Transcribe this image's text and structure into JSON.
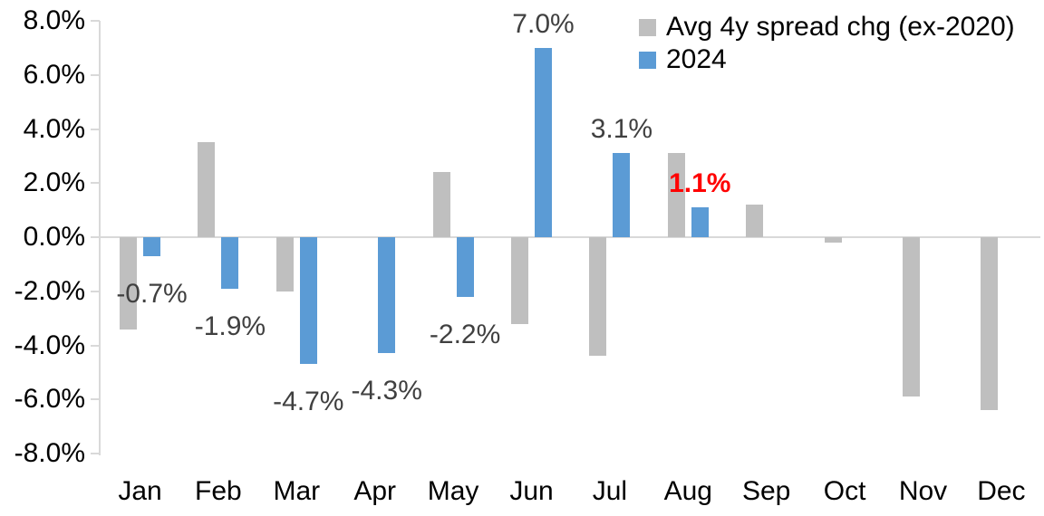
{
  "chart_data": {
    "type": "bar",
    "title": "",
    "xlabel": "",
    "ylabel": "",
    "categories": [
      "Jan",
      "Feb",
      "Mar",
      "Apr",
      "May",
      "Jun",
      "Jul",
      "Aug",
      "Sep",
      "Oct",
      "Nov",
      "Dec"
    ],
    "series": [
      {
        "name": "Avg 4y spread chg (ex-2020)",
        "color": "#BFBFBF",
        "values": [
          -3.4,
          3.5,
          -2.0,
          0.0,
          2.4,
          -3.2,
          -4.4,
          3.1,
          1.2,
          -0.2,
          -5.9,
          -6.4
        ]
      },
      {
        "name": "2024",
        "color": "#5B9BD5",
        "values": [
          -0.7,
          -1.9,
          -4.7,
          -4.3,
          -2.2,
          7.0,
          3.1,
          1.1,
          null,
          null,
          null,
          null
        ]
      }
    ],
    "data_labels": [
      {
        "category": "Jan",
        "text": "-0.7%",
        "value": -0.7,
        "position": "below",
        "color": "#404040",
        "bold": false
      },
      {
        "category": "Feb",
        "text": "-1.9%",
        "value": -1.9,
        "position": "below",
        "color": "#404040",
        "bold": false
      },
      {
        "category": "Mar",
        "text": "-4.7%",
        "value": -4.7,
        "position": "below",
        "color": "#404040",
        "bold": false
      },
      {
        "category": "Apr",
        "text": "-4.3%",
        "value": -4.3,
        "position": "below",
        "color": "#404040",
        "bold": false
      },
      {
        "category": "May",
        "text": "-2.2%",
        "value": -2.2,
        "position": "below",
        "color": "#404040",
        "bold": false
      },
      {
        "category": "Jun",
        "text": "7.0%",
        "value": 7.0,
        "position": "above",
        "color": "#404040",
        "bold": false
      },
      {
        "category": "Jul",
        "text": "3.1%",
        "value": 3.1,
        "position": "above",
        "color": "#404040",
        "bold": false
      },
      {
        "category": "Aug",
        "text": "1.1%",
        "value": 1.1,
        "position": "above",
        "color": "#FF0000",
        "bold": true
      }
    ],
    "ylim": [
      -8,
      8
    ],
    "ytick_step": 2,
    "ytick_labels": [
      "8.0%",
      "6.0%",
      "4.0%",
      "2.0%",
      "0.0%",
      "-2.0%",
      "-4.0%",
      "-6.0%",
      "-8.0%"
    ],
    "grid": "zero-line-only",
    "axis_color": "#D9D9D9",
    "zero_line_color": "#D9D9D9",
    "background_color": "#FFFFFF",
    "legend_position": "top-right"
  }
}
